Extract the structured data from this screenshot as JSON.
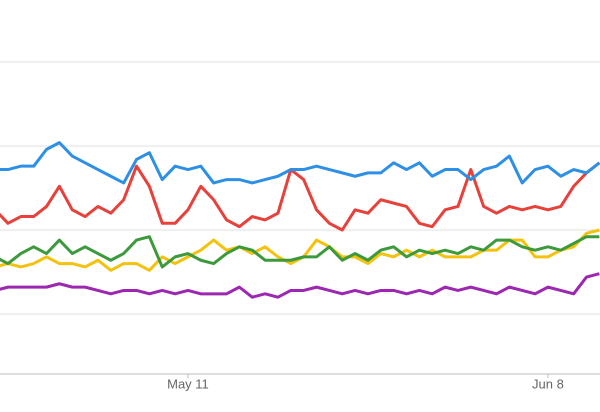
{
  "chart_data": {
    "type": "line",
    "x": [
      0,
      1,
      2,
      3,
      4,
      5,
      6,
      7,
      8,
      9,
      10,
      11,
      12,
      13,
      14,
      15,
      16,
      17,
      18,
      19,
      20,
      21,
      22,
      23,
      24,
      25,
      26,
      27,
      28,
      29,
      30,
      31,
      32,
      33,
      34,
      35,
      36,
      37,
      38,
      39,
      40,
      41,
      42,
      43,
      44,
      45,
      46,
      47
    ],
    "series": [
      {
        "color": "#9c27b0",
        "values": [
          32,
          33,
          33,
          33,
          33,
          34,
          33,
          33,
          32,
          31,
          32,
          32,
          31,
          32,
          31,
          32,
          31,
          31,
          31,
          33,
          30,
          31,
          30,
          32,
          32,
          33,
          32,
          31,
          32,
          31,
          32,
          32,
          31,
          32,
          31,
          33,
          32,
          33,
          32,
          31,
          33,
          32,
          31,
          33,
          32,
          31,
          36,
          37
        ]
      },
      {
        "color": "#f4c20d",
        "values": [
          39,
          40,
          39,
          40,
          42,
          40,
          40,
          39,
          41,
          38,
          40,
          40,
          38,
          42,
          40,
          42,
          44,
          47,
          44,
          45,
          43,
          45,
          42,
          40,
          42,
          47,
          45,
          42,
          42,
          40,
          43,
          42,
          44,
          42,
          44,
          42,
          42,
          42,
          44,
          44,
          47,
          47,
          42,
          42,
          44,
          45,
          49,
          50
        ]
      },
      {
        "color": "#3c9a3c",
        "values": [
          42,
          40,
          43,
          45,
          43,
          47,
          43,
          45,
          43,
          41,
          43,
          47,
          48,
          39,
          42,
          43,
          41,
          40,
          43,
          45,
          44,
          41,
          41,
          41,
          42,
          42,
          45,
          41,
          43,
          41,
          44,
          45,
          42,
          44,
          43,
          44,
          43,
          45,
          44,
          47,
          47,
          45,
          44,
          45,
          44,
          46,
          48,
          48
        ]
      },
      {
        "color": "#e8403a",
        "values": [
          56,
          52,
          54,
          54,
          57,
          63,
          56,
          54,
          57,
          55,
          59,
          69,
          63,
          52,
          52,
          56,
          63,
          59,
          53,
          51,
          54,
          53,
          55,
          68,
          65,
          56,
          52,
          50,
          56,
          55,
          59,
          58,
          57,
          52,
          51,
          56,
          57,
          68,
          57,
          55,
          57,
          56,
          57,
          56,
          57,
          63,
          67,
          70
        ]
      },
      {
        "color": "#2d8fe5",
        "values": [
          68,
          68,
          69,
          69,
          74,
          76,
          72,
          70,
          68,
          66,
          64,
          71,
          73,
          65,
          69,
          68,
          69,
          64,
          65,
          65,
          64,
          65,
          66,
          68,
          68,
          69,
          68,
          67,
          66,
          67,
          67,
          70,
          68,
          70,
          66,
          68,
          68,
          65,
          68,
          69,
          72,
          64,
          68,
          69,
          66,
          68,
          67,
          70
        ]
      }
    ],
    "xlim": [
      0.38,
      47.05
    ],
    "xticks": [
      {
        "value": 15,
        "label": "May 11"
      },
      {
        "value": 43,
        "label": "Jun 8"
      }
    ],
    "ylim": [
      0,
      100
    ],
    "yticks": [
      25,
      50,
      75,
      100
    ],
    "grid": true
  }
}
